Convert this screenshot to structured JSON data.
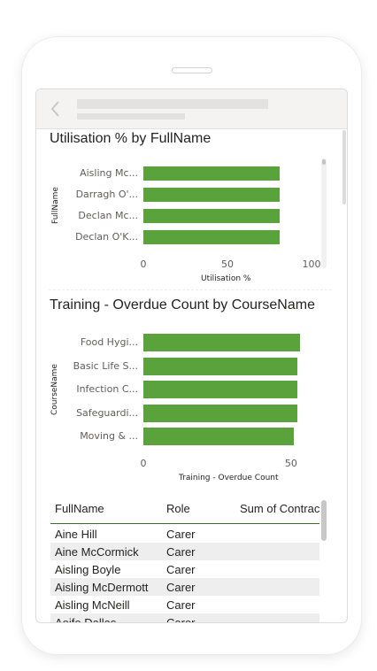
{
  "utilisation_chart": {
    "title": "Utilisation % by FullName",
    "ylabel": "FullName",
    "xlabel": "Utilisation %",
    "chart_data": {
      "type": "bar",
      "categories": [
        "Aisling Mc...",
        "Darragh O'...",
        "Declan Mc...",
        "Declan O'K..."
      ],
      "values": [
        81,
        81,
        81,
        81
      ],
      "xlim": [
        0,
        100
      ],
      "ticks": [
        "0",
        "50",
        "100"
      ],
      "title": "Utilisation % by FullName",
      "xlabel": "Utilisation %",
      "ylabel": "FullName"
    }
  },
  "training_chart": {
    "title": "Training - Overdue Count by CourseName",
    "ylabel": "CourseName",
    "xlabel": "Training - Overdue Count",
    "chart_data": {
      "type": "bar",
      "categories": [
        "Food Hygi...",
        "Basic Life S...",
        "Infection C...",
        "Safeguardi...",
        "Moving & ..."
      ],
      "values": [
        53,
        52,
        52,
        52,
        51
      ],
      "xlim": [
        0,
        65
      ],
      "ticks": [
        "0",
        "50"
      ],
      "title": "Training - Overdue Count by CourseName",
      "xlabel": "Training - Overdue Count",
      "ylabel": "CourseName"
    }
  },
  "table": {
    "columns": [
      "FullName",
      "Role",
      "Sum of Contrac"
    ],
    "rows": [
      [
        "Aine Hill",
        "Carer"
      ],
      [
        "Aine McCormick",
        "Carer"
      ],
      [
        "Aisling Boyle",
        "Carer"
      ],
      [
        "Aisling McDermott",
        "Carer"
      ],
      [
        "Aisling McNeill",
        "Carer"
      ],
      [
        "Aoife Dallas",
        "Carer"
      ]
    ]
  },
  "colors": {
    "bar": "#5aa23b",
    "header_rule": "#3c6e23"
  },
  "icons": {
    "back": "chevron-left-icon"
  }
}
